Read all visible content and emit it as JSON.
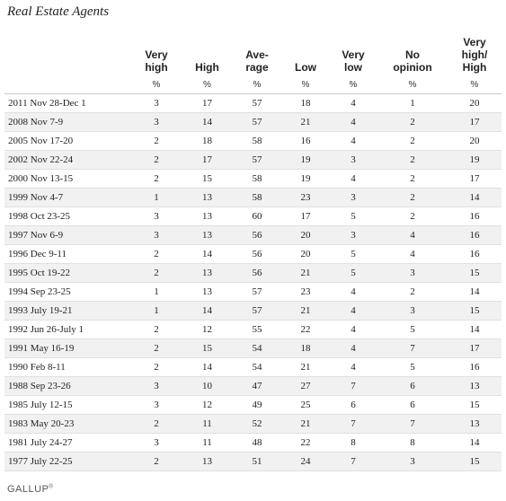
{
  "title": "Real Estate Agents",
  "columns": [
    [
      "Very",
      "high"
    ],
    [
      "",
      "High"
    ],
    [
      "Ave-",
      "rage"
    ],
    [
      "",
      "Low"
    ],
    [
      "Very",
      "low"
    ],
    [
      "No",
      "opinion"
    ],
    [
      "Very",
      "high/",
      "High"
    ]
  ],
  "units": [
    "%",
    "%",
    "%",
    "%",
    "%",
    "%",
    "%"
  ],
  "rows": [
    [
      "2011 Nov 28-Dec 1",
      "3",
      "17",
      "57",
      "18",
      "4",
      "1",
      "20"
    ],
    [
      "2008 Nov 7-9",
      "3",
      "14",
      "57",
      "21",
      "4",
      "2",
      "17"
    ],
    [
      "2005 Nov 17-20",
      "2",
      "18",
      "58",
      "16",
      "4",
      "2",
      "20"
    ],
    [
      "2002 Nov 22-24",
      "2",
      "17",
      "57",
      "19",
      "3",
      "2",
      "19"
    ],
    [
      "2000 Nov 13-15",
      "2",
      "15",
      "58",
      "19",
      "4",
      "2",
      "17"
    ],
    [
      "1999 Nov 4-7",
      "1",
      "13",
      "58",
      "23",
      "3",
      "2",
      "14"
    ],
    [
      "1998 Oct 23-25",
      "3",
      "13",
      "60",
      "17",
      "5",
      "2",
      "16"
    ],
    [
      "1997 Nov 6-9",
      "3",
      "13",
      "56",
      "20",
      "3",
      "4",
      "16"
    ],
    [
      "1996 Dec 9-11",
      "2",
      "14",
      "56",
      "20",
      "5",
      "4",
      "16"
    ],
    [
      "1995 Oct 19-22",
      "2",
      "13",
      "56",
      "21",
      "5",
      "3",
      "15"
    ],
    [
      "1994 Sep 23-25",
      "1",
      "13",
      "57",
      "23",
      "4",
      "2",
      "14"
    ],
    [
      "1993 July 19-21",
      "1",
      "14",
      "57",
      "21",
      "4",
      "3",
      "15"
    ],
    [
      "1992 Jun 26-July 1",
      "2",
      "12",
      "55",
      "22",
      "4",
      "5",
      "14"
    ],
    [
      "1991 May 16-19",
      "2",
      "15",
      "54",
      "18",
      "4",
      "7",
      "17"
    ],
    [
      "1990 Feb 8-11",
      "2",
      "14",
      "54",
      "21",
      "4",
      "5",
      "16"
    ],
    [
      "1988 Sep 23-26",
      "3",
      "10",
      "47",
      "27",
      "7",
      "6",
      "13"
    ],
    [
      "1985 July 12-15",
      "3",
      "12",
      "49",
      "25",
      "6",
      "6",
      "15"
    ],
    [
      "1983 May 20-23",
      "2",
      "11",
      "52",
      "21",
      "7",
      "7",
      "13"
    ],
    [
      "1981 July 24-27",
      "3",
      "11",
      "48",
      "22",
      "8",
      "8",
      "14"
    ],
    [
      "1977 July 22-25",
      "2",
      "13",
      "51",
      "24",
      "7",
      "3",
      "15"
    ]
  ],
  "footer": {
    "brand": "GALLUP",
    "mark": "®"
  }
}
